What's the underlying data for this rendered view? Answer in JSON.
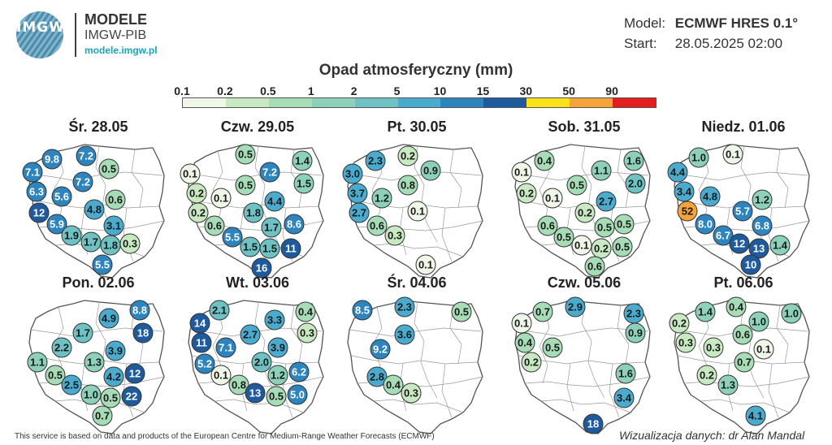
{
  "header": {
    "logo_text": "IMGW",
    "brand_title": "MODELE",
    "brand_subtitle": "IMGW-PIB",
    "brand_url": "modele.imgw.pl",
    "model_label": "Model:",
    "model_value": "ECMWF HRES 0.1°",
    "start_label": "Start:",
    "start_value": "28.05.2025 02:00"
  },
  "legend": {
    "title": "Opad atmosferyczny (mm)",
    "ticks": [
      "0.1",
      "0.2",
      "0.5",
      "1",
      "2",
      "5",
      "10",
      "15",
      "30",
      "50",
      "90"
    ],
    "colors": [
      "#eef7e8",
      "#c8e9c2",
      "#a6dcb6",
      "#8dd1bb",
      "#6ec2c4",
      "#4aabcf",
      "#2e84bd",
      "#1f5a9c",
      "#ffe11a",
      "#f5a33b",
      "#e41d1d"
    ]
  },
  "maps": [
    {
      "date": "Śr. 28.05",
      "values": [
        {
          "v": "9.8",
          "x": 38,
          "y": 24,
          "c": "#2e84bd"
        },
        {
          "v": "7.2",
          "x": 80,
          "y": 20,
          "c": "#2e84bd"
        },
        {
          "v": "7.1",
          "x": 14,
          "y": 40,
          "c": "#2e84bd"
        },
        {
          "v": "0.5",
          "x": 108,
          "y": 36,
          "c": "#a6dcb6"
        },
        {
          "v": "7.2",
          "x": 76,
          "y": 52,
          "c": "#2e84bd"
        },
        {
          "v": "6.3",
          "x": 19,
          "y": 64,
          "c": "#2e84bd"
        },
        {
          "v": "5.6",
          "x": 50,
          "y": 70,
          "c": "#2e84bd"
        },
        {
          "v": "0.6",
          "x": 116,
          "y": 74,
          "c": "#a6dcb6"
        },
        {
          "v": "12",
          "x": 22,
          "y": 90,
          "c": "#1f5a9c"
        },
        {
          "v": "4.8",
          "x": 90,
          "y": 86,
          "c": "#4aabcf"
        },
        {
          "v": "5.9",
          "x": 44,
          "y": 104,
          "c": "#2e84bd"
        },
        {
          "v": "3.1",
          "x": 114,
          "y": 106,
          "c": "#4aabcf"
        },
        {
          "v": "1.9",
          "x": 62,
          "y": 118,
          "c": "#6ec2c4"
        },
        {
          "v": "1.7",
          "x": 86,
          "y": 126,
          "c": "#6ec2c4"
        },
        {
          "v": "1.8",
          "x": 110,
          "y": 130,
          "c": "#6ec2c4"
        },
        {
          "v": "0.3",
          "x": 134,
          "y": 128,
          "c": "#c8e9c2"
        },
        {
          "v": "5.5",
          "x": 100,
          "y": 154,
          "c": "#2e84bd"
        }
      ]
    },
    {
      "date": "Czw. 29.05",
      "values": [
        {
          "v": "0.5",
          "x": 80,
          "y": 18,
          "c": "#a6dcb6"
        },
        {
          "v": "1.4",
          "x": 150,
          "y": 26,
          "c": "#8dd1bb"
        },
        {
          "v": "0.1",
          "x": 12,
          "y": 42,
          "c": "#eef7e8"
        },
        {
          "v": "7.2",
          "x": 110,
          "y": 40,
          "c": "#2e84bd"
        },
        {
          "v": "1.5",
          "x": 152,
          "y": 54,
          "c": "#8dd1bb"
        },
        {
          "v": "0.2",
          "x": 20,
          "y": 66,
          "c": "#c8e9c2"
        },
        {
          "v": "0.5",
          "x": 80,
          "y": 56,
          "c": "#a6dcb6"
        },
        {
          "v": "0.1",
          "x": 50,
          "y": 72,
          "c": "#eef7e8"
        },
        {
          "v": "4.4",
          "x": 116,
          "y": 76,
          "c": "#4aabcf"
        },
        {
          "v": "0.2",
          "x": 22,
          "y": 90,
          "c": "#c8e9c2"
        },
        {
          "v": "1.8",
          "x": 90,
          "y": 90,
          "c": "#6ec2c4"
        },
        {
          "v": "0.6",
          "x": 42,
          "y": 106,
          "c": "#a6dcb6"
        },
        {
          "v": "1.7",
          "x": 112,
          "y": 108,
          "c": "#6ec2c4"
        },
        {
          "v": "8.6",
          "x": 140,
          "y": 104,
          "c": "#2e84bd"
        },
        {
          "v": "5.5",
          "x": 64,
          "y": 120,
          "c": "#2e84bd"
        },
        {
          "v": "1.5",
          "x": 86,
          "y": 132,
          "c": "#6ec2c4"
        },
        {
          "v": "1.5",
          "x": 110,
          "y": 134,
          "c": "#6ec2c4"
        },
        {
          "v": "11",
          "x": 136,
          "y": 134,
          "c": "#1f5a9c"
        },
        {
          "v": "16",
          "x": 100,
          "y": 158,
          "c": "#1f5a9c"
        }
      ]
    },
    {
      "date": "Pt. 30.05",
      "values": [
        {
          "v": "2.3",
          "x": 44,
          "y": 26,
          "c": "#4aabcf"
        },
        {
          "v": "0.2",
          "x": 84,
          "y": 20,
          "c": "#c8e9c2"
        },
        {
          "v": "3.0",
          "x": 16,
          "y": 42,
          "c": "#4aabcf"
        },
        {
          "v": "0.9",
          "x": 112,
          "y": 38,
          "c": "#8dd1bb"
        },
        {
          "v": "0.8",
          "x": 84,
          "y": 56,
          "c": "#a6dcb6"
        },
        {
          "v": "3.7",
          "x": 22,
          "y": 66,
          "c": "#4aabcf"
        },
        {
          "v": "1.2",
          "x": 52,
          "y": 72,
          "c": "#8dd1bb"
        },
        {
          "v": "2.7",
          "x": 24,
          "y": 90,
          "c": "#4aabcf"
        },
        {
          "v": "0.1",
          "x": 96,
          "y": 88,
          "c": "#eef7e8"
        },
        {
          "v": "0.6",
          "x": 46,
          "y": 106,
          "c": "#a6dcb6"
        },
        {
          "v": "0.3",
          "x": 68,
          "y": 118,
          "c": "#c8e9c2"
        },
        {
          "v": "0.1",
          "x": 106,
          "y": 154,
          "c": "#eef7e8"
        }
      ]
    },
    {
      "date": "Sob. 31.05",
      "values": [
        {
          "v": "0.4",
          "x": 46,
          "y": 26,
          "c": "#a6dcb6"
        },
        {
          "v": "1.6",
          "x": 156,
          "y": 26,
          "c": "#8dd1bb"
        },
        {
          "v": "0.1",
          "x": 18,
          "y": 40,
          "c": "#eef7e8"
        },
        {
          "v": "1.1",
          "x": 116,
          "y": 38,
          "c": "#8dd1bb"
        },
        {
          "v": "2.0",
          "x": 158,
          "y": 54,
          "c": "#6ec2c4"
        },
        {
          "v": "0.2",
          "x": 24,
          "y": 66,
          "c": "#c8e9c2"
        },
        {
          "v": "0.5",
          "x": 86,
          "y": 56,
          "c": "#a6dcb6"
        },
        {
          "v": "0.1",
          "x": 56,
          "y": 72,
          "c": "#eef7e8"
        },
        {
          "v": "2.7",
          "x": 122,
          "y": 76,
          "c": "#4aabcf"
        },
        {
          "v": "0.2",
          "x": 96,
          "y": 90,
          "c": "#c8e9c2"
        },
        {
          "v": "0.6",
          "x": 50,
          "y": 106,
          "c": "#a6dcb6"
        },
        {
          "v": "0.5",
          "x": 120,
          "y": 108,
          "c": "#a6dcb6"
        },
        {
          "v": "0.5",
          "x": 144,
          "y": 104,
          "c": "#a6dcb6"
        },
        {
          "v": "0.5",
          "x": 70,
          "y": 120,
          "c": "#a6dcb6"
        },
        {
          "v": "0.1",
          "x": 92,
          "y": 130,
          "c": "#eef7e8"
        },
        {
          "v": "0.2",
          "x": 116,
          "y": 134,
          "c": "#c8e9c2"
        },
        {
          "v": "0.5",
          "x": 142,
          "y": 132,
          "c": "#a6dcb6"
        },
        {
          "v": "0.6",
          "x": 108,
          "y": 156,
          "c": "#a6dcb6"
        }
      ]
    },
    {
      "date": "Niedz. 01.06",
      "values": [
        {
          "v": "1.0",
          "x": 40,
          "y": 22,
          "c": "#8dd1bb"
        },
        {
          "v": "0.1",
          "x": 82,
          "y": 18,
          "c": "#eef7e8"
        },
        {
          "v": "4.4",
          "x": 14,
          "y": 40,
          "c": "#4aabcf"
        },
        {
          "v": "3.4",
          "x": 22,
          "y": 64,
          "c": "#4aabcf"
        },
        {
          "v": "4.8",
          "x": 54,
          "y": 70,
          "c": "#4aabcf"
        },
        {
          "v": "1.2",
          "x": 118,
          "y": 74,
          "c": "#8dd1bb"
        },
        {
          "v": "52",
          "x": 26,
          "y": 88,
          "c": "#f5a33b"
        },
        {
          "v": "5.7",
          "x": 94,
          "y": 88,
          "c": "#2e84bd"
        },
        {
          "v": "8.0",
          "x": 48,
          "y": 104,
          "c": "#2e84bd"
        },
        {
          "v": "6.8",
          "x": 118,
          "y": 106,
          "c": "#2e84bd"
        },
        {
          "v": "6.7",
          "x": 70,
          "y": 118,
          "c": "#2e84bd"
        },
        {
          "v": "12",
          "x": 90,
          "y": 128,
          "c": "#1f5a9c"
        },
        {
          "v": "13",
          "x": 114,
          "y": 134,
          "c": "#1f5a9c"
        },
        {
          "v": "1.4",
          "x": 140,
          "y": 130,
          "c": "#8dd1bb"
        },
        {
          "v": "10",
          "x": 104,
          "y": 154,
          "c": "#1f5a9c"
        }
      ]
    },
    {
      "date": "Pon. 02.06",
      "values": [
        {
          "v": "8.8",
          "x": 146,
          "y": 18,
          "c": "#2e84bd"
        },
        {
          "v": "4.9",
          "x": 108,
          "y": 28,
          "c": "#4aabcf"
        },
        {
          "v": "18",
          "x": 150,
          "y": 46,
          "c": "#1f5a9c"
        },
        {
          "v": "1.7",
          "x": 76,
          "y": 46,
          "c": "#6ec2c4"
        },
        {
          "v": "2.2",
          "x": 50,
          "y": 64,
          "c": "#6ec2c4"
        },
        {
          "v": "3.9",
          "x": 116,
          "y": 68,
          "c": "#4aabcf"
        },
        {
          "v": "1.1",
          "x": 20,
          "y": 82,
          "c": "#8dd1bb"
        },
        {
          "v": "1.3",
          "x": 90,
          "y": 82,
          "c": "#8dd1bb"
        },
        {
          "v": "0.5",
          "x": 42,
          "y": 98,
          "c": "#a6dcb6"
        },
        {
          "v": "4.2",
          "x": 114,
          "y": 100,
          "c": "#4aabcf"
        },
        {
          "v": "12",
          "x": 140,
          "y": 96,
          "c": "#1f5a9c"
        },
        {
          "v": "2.5",
          "x": 62,
          "y": 110,
          "c": "#4aabcf"
        },
        {
          "v": "1.0",
          "x": 86,
          "y": 122,
          "c": "#8dd1bb"
        },
        {
          "v": "0.5",
          "x": 110,
          "y": 126,
          "c": "#a6dcb6"
        },
        {
          "v": "22",
          "x": 136,
          "y": 124,
          "c": "#1f5a9c"
        },
        {
          "v": "0.7",
          "x": 100,
          "y": 148,
          "c": "#a6dcb6"
        }
      ]
    },
    {
      "date": "Wt. 03.06",
      "values": [
        {
          "v": "2.1",
          "x": 48,
          "y": 18,
          "c": "#6ec2c4"
        },
        {
          "v": "3.3",
          "x": 116,
          "y": 30,
          "c": "#4aabcf"
        },
        {
          "v": "0.4",
          "x": 154,
          "y": 20,
          "c": "#a6dcb6"
        },
        {
          "v": "14",
          "x": 24,
          "y": 34,
          "c": "#1f5a9c"
        },
        {
          "v": "0.3",
          "x": 156,
          "y": 46,
          "c": "#c8e9c2"
        },
        {
          "v": "2.7",
          "x": 86,
          "y": 48,
          "c": "#4aabcf"
        },
        {
          "v": "11",
          "x": 26,
          "y": 58,
          "c": "#1f5a9c"
        },
        {
          "v": "7.1",
          "x": 56,
          "y": 64,
          "c": "#2e84bd"
        },
        {
          "v": "3.9",
          "x": 120,
          "y": 64,
          "c": "#4aabcf"
        },
        {
          "v": "5.2",
          "x": 30,
          "y": 84,
          "c": "#2e84bd"
        },
        {
          "v": "2.0",
          "x": 100,
          "y": 82,
          "c": "#6ec2c4"
        },
        {
          "v": "0.1",
          "x": 50,
          "y": 98,
          "c": "#eef7e8"
        },
        {
          "v": "1.2",
          "x": 120,
          "y": 98,
          "c": "#8dd1bb"
        },
        {
          "v": "6.2",
          "x": 146,
          "y": 94,
          "c": "#2e84bd"
        },
        {
          "v": "0.8",
          "x": 72,
          "y": 110,
          "c": "#a6dcb6"
        },
        {
          "v": "13",
          "x": 92,
          "y": 120,
          "c": "#1f5a9c"
        },
        {
          "v": "0.5",
          "x": 118,
          "y": 124,
          "c": "#a6dcb6"
        },
        {
          "v": "5.0",
          "x": 144,
          "y": 122,
          "c": "#2e84bd"
        }
      ]
    },
    {
      "date": "Śr. 04.06",
      "values": [
        {
          "v": "8.5",
          "x": 28,
          "y": 18,
          "c": "#2e84bd"
        },
        {
          "v": "2.3",
          "x": 80,
          "y": 14,
          "c": "#4aabcf"
        },
        {
          "v": "0.5",
          "x": 150,
          "y": 20,
          "c": "#a6dcb6"
        },
        {
          "v": "3.6",
          "x": 80,
          "y": 48,
          "c": "#4aabcf"
        },
        {
          "v": "9.2",
          "x": 50,
          "y": 66,
          "c": "#2e84bd"
        },
        {
          "v": "2.8",
          "x": 46,
          "y": 100,
          "c": "#4aabcf"
        },
        {
          "v": "0.4",
          "x": 66,
          "y": 110,
          "c": "#a6dcb6"
        },
        {
          "v": "0.3",
          "x": 88,
          "y": 120,
          "c": "#c8e9c2"
        }
      ]
    },
    {
      "date": "Czw. 05.06",
      "values": [
        {
          "v": "0.7",
          "x": 44,
          "y": 20,
          "c": "#a6dcb6"
        },
        {
          "v": "2.9",
          "x": 84,
          "y": 14,
          "c": "#4aabcf"
        },
        {
          "v": "2.3",
          "x": 156,
          "y": 22,
          "c": "#4aabcf"
        },
        {
          "v": "0.1",
          "x": 18,
          "y": 34,
          "c": "#eef7e8"
        },
        {
          "v": "0.9",
          "x": 158,
          "y": 46,
          "c": "#8dd1bb"
        },
        {
          "v": "0.4",
          "x": 22,
          "y": 58,
          "c": "#a6dcb6"
        },
        {
          "v": "0.5",
          "x": 56,
          "y": 64,
          "c": "#a6dcb6"
        },
        {
          "v": "0.2",
          "x": 30,
          "y": 82,
          "c": "#c8e9c2"
        },
        {
          "v": "1.6",
          "x": 146,
          "y": 96,
          "c": "#8dd1bb"
        },
        {
          "v": "3.4",
          "x": 144,
          "y": 126,
          "c": "#4aabcf"
        },
        {
          "v": "18",
          "x": 106,
          "y": 158,
          "c": "#1f5a9c"
        }
      ]
    },
    {
      "date": "Pt. 06.06",
      "values": [
        {
          "v": "1.4",
          "x": 48,
          "y": 20,
          "c": "#8dd1bb"
        },
        {
          "v": "0.4",
          "x": 86,
          "y": 14,
          "c": "#a6dcb6"
        },
        {
          "v": "1.0",
          "x": 154,
          "y": 22,
          "c": "#8dd1bb"
        },
        {
          "v": "0.2",
          "x": 16,
          "y": 34,
          "c": "#c8e9c2"
        },
        {
          "v": "1.0",
          "x": 114,
          "y": 32,
          "c": "#8dd1bb"
        },
        {
          "v": "0.6",
          "x": 94,
          "y": 48,
          "c": "#a6dcb6"
        },
        {
          "v": "0.3",
          "x": 24,
          "y": 58,
          "c": "#c8e9c2"
        },
        {
          "v": "0.3",
          "x": 58,
          "y": 64,
          "c": "#c8e9c2"
        },
        {
          "v": "0.1",
          "x": 120,
          "y": 66,
          "c": "#eef7e8"
        },
        {
          "v": "0.7",
          "x": 96,
          "y": 82,
          "c": "#a6dcb6"
        },
        {
          "v": "0.2",
          "x": 50,
          "y": 98,
          "c": "#c8e9c2"
        },
        {
          "v": "1.3",
          "x": 76,
          "y": 110,
          "c": "#8dd1bb"
        },
        {
          "v": "4.1",
          "x": 110,
          "y": 148,
          "c": "#4aabcf"
        }
      ]
    }
  ],
  "footer": {
    "left": "This service is based on data and products of the European Centre for Medium-Range Weather Forecasts (ECMWF)",
    "right": "Wizualizacja danych: dr Alan Mandal"
  }
}
